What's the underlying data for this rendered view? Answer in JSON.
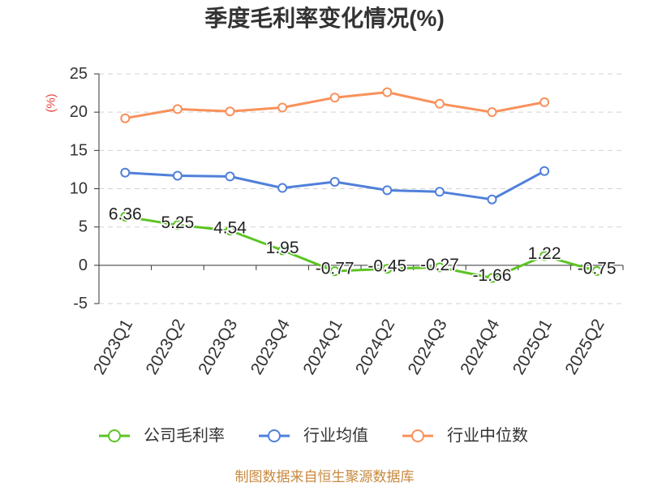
{
  "chart_data": {
    "type": "line",
    "title": "季度毛利率变化情况(%)",
    "xlabel": "",
    "ylabel": "(%)",
    "categories": [
      "2023Q1",
      "2023Q2",
      "2023Q3",
      "2023Q4",
      "2024Q1",
      "2024Q2",
      "2024Q3",
      "2024Q4",
      "2025Q1",
      "2025Q2"
    ],
    "ylim": [
      -5,
      25
    ],
    "yticks": [
      -5,
      0,
      5,
      10,
      15,
      20,
      25
    ],
    "grid": true,
    "legend": "bottom",
    "series": [
      {
        "name": "公司毛利率",
        "color": "#5cc424",
        "data_labels": true,
        "values": [
          6.36,
          5.25,
          4.54,
          1.95,
          -0.77,
          -0.45,
          -0.27,
          -1.66,
          1.22,
          -0.75
        ]
      },
      {
        "name": "行业均值",
        "color": "#5080da",
        "data_labels": false,
        "values": [
          12.1,
          11.7,
          11.6,
          10.1,
          10.9,
          9.8,
          9.6,
          8.6,
          12.3,
          null
        ]
      },
      {
        "name": "行业中位数",
        "color": "#f8915b",
        "data_labels": false,
        "values": [
          19.2,
          20.4,
          20.1,
          20.6,
          21.9,
          22.6,
          21.1,
          20.0,
          21.3,
          null
        ]
      }
    ]
  },
  "source_note": "制图数据来自恒生聚源数据库",
  "colors": {
    "ylabel": "#e8423d",
    "source_note": "#c8893e",
    "axis": "#333333",
    "grid": "#d2d2d2"
  }
}
